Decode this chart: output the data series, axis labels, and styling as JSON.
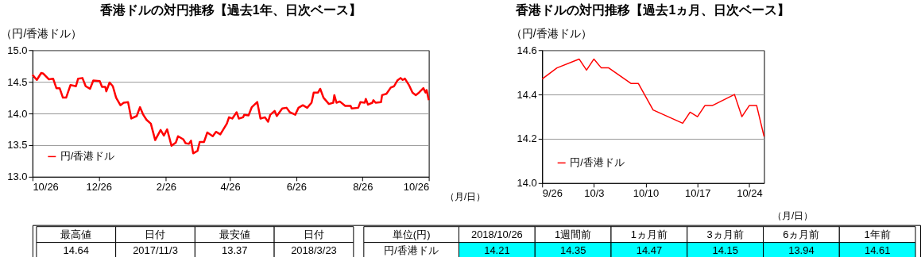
{
  "chart_data": [
    {
      "type": "line",
      "title": "香港ドルの対円推移【過去1年、日次ベース】",
      "ylabel": "（円/香港ドル）",
      "xlabel": "（月/日）",
      "x": [
        "2017-10-26",
        "2017-10-30",
        "2017-11-03",
        "2017-11-05",
        "2017-11-10",
        "2017-11-14",
        "2017-11-17",
        "2017-11-20",
        "2017-11-23",
        "2017-11-26",
        "2017-11-30",
        "2017-12-05",
        "2017-12-07",
        "2017-12-11",
        "2017-12-14",
        "2017-12-18",
        "2017-12-21",
        "2017-12-27",
        "2017-12-29",
        "2018-01-01",
        "2018-01-02",
        "2018-01-05",
        "2018-01-08",
        "2018-01-11",
        "2018-01-15",
        "2018-01-18",
        "2018-01-22",
        "2018-01-25",
        "2018-01-30",
        "2018-02-02",
        "2018-02-05",
        "2018-02-08",
        "2018-02-12",
        "2018-02-16",
        "2018-02-21",
        "2018-02-24",
        "2018-02-27",
        "2018-03-03",
        "2018-03-07",
        "2018-03-09",
        "2018-03-14",
        "2018-03-16",
        "2018-03-19",
        "2018-03-21",
        "2018-03-23",
        "2018-03-27",
        "2018-03-29",
        "2018-04-02",
        "2018-04-05",
        "2018-04-10",
        "2018-04-13",
        "2018-04-17",
        "2018-04-23",
        "2018-04-25",
        "2018-04-28",
        "2018-05-02",
        "2018-05-04",
        "2018-05-08",
        "2018-05-09",
        "2018-05-13",
        "2018-05-16",
        "2018-05-21",
        "2018-05-24",
        "2018-05-28",
        "2018-05-31",
        "2018-06-02",
        "2018-06-06",
        "2018-06-08",
        "2018-06-13",
        "2018-06-17",
        "2018-06-20",
        "2018-06-25",
        "2018-06-28",
        "2018-07-02",
        "2018-07-06",
        "2018-07-10",
        "2018-07-12",
        "2018-07-16",
        "2018-07-18",
        "2018-07-21",
        "2018-07-26",
        "2018-07-30",
        "2018-07-31",
        "2018-08-02",
        "2018-08-05",
        "2018-08-10",
        "2018-08-15",
        "2018-08-16",
        "2018-08-22",
        "2018-08-24",
        "2018-08-28",
        "2018-08-29",
        "2018-08-31",
        "2018-09-04",
        "2018-09-05",
        "2018-09-07",
        "2018-09-12",
        "2018-09-13",
        "2018-09-17",
        "2018-09-21",
        "2018-09-24",
        "2018-09-27",
        "2018-09-30",
        "2018-10-02",
        "2018-10-04",
        "2018-10-08",
        "2018-10-11",
        "2018-10-14",
        "2018-10-17",
        "2018-10-21",
        "2018-10-23",
        "2018-10-24",
        "2018-10-26"
      ],
      "series": [
        {
          "name": "円/香港ドル",
          "color": "#ff0000",
          "values": [
            14.61,
            14.53,
            14.64,
            14.63,
            14.54,
            14.55,
            14.4,
            14.4,
            14.25,
            14.25,
            14.45,
            14.43,
            14.55,
            14.56,
            14.43,
            14.39,
            14.52,
            14.51,
            14.42,
            14.42,
            14.35,
            14.49,
            14.43,
            14.25,
            14.13,
            14.17,
            14.18,
            13.92,
            13.96,
            14.1,
            13.98,
            13.9,
            13.84,
            13.58,
            13.74,
            13.65,
            13.75,
            13.49,
            13.54,
            13.64,
            13.59,
            13.53,
            13.52,
            13.57,
            13.37,
            13.41,
            13.55,
            13.55,
            13.7,
            13.64,
            13.71,
            13.67,
            13.84,
            13.94,
            13.92,
            14.02,
            13.92,
            13.94,
            13.98,
            13.97,
            14.1,
            14.18,
            13.92,
            13.94,
            13.87,
            13.98,
            14.04,
            13.96,
            14.08,
            14.09,
            14.02,
            13.98,
            14.09,
            14.13,
            14.09,
            14.17,
            14.33,
            14.33,
            14.39,
            14.25,
            14.15,
            14.17,
            14.29,
            14.17,
            14.19,
            14.12,
            14.12,
            14.08,
            14.09,
            14.18,
            14.17,
            14.23,
            14.14,
            14.17,
            14.21,
            14.17,
            14.18,
            14.29,
            14.31,
            14.41,
            14.43,
            14.52,
            14.56,
            14.53,
            14.55,
            14.44,
            14.33,
            14.29,
            14.33,
            14.4,
            14.33,
            14.37,
            14.21
          ]
        }
      ],
      "xlim": [
        "2017-10-26",
        "2018-10-26"
      ],
      "xticks": [
        {
          "value": "2017-10-26",
          "label": "10/26"
        },
        {
          "value": "2017-12-26",
          "label": "12/26"
        },
        {
          "value": "2018-02-26",
          "label": "2/26"
        },
        {
          "value": "2018-04-26",
          "label": "4/26"
        },
        {
          "value": "2018-06-26",
          "label": "6/26"
        },
        {
          "value": "2018-08-26",
          "label": "8/26"
        },
        {
          "value": "2018-10-26",
          "label": "10/26"
        }
      ],
      "ylim": [
        13.0,
        15.0
      ],
      "yticks": [
        {
          "value": 13,
          "label": "13.0"
        },
        13.5,
        {
          "value": 14,
          "label": "14.0"
        },
        14.5,
        {
          "value": 15,
          "label": "15.0"
        }
      ],
      "grid": "y",
      "legend": "bottom left",
      "annotations": [
        "最高値",
        "日付",
        "最安値",
        "日付",
        "14.64",
        "2017/11/3",
        "13.37",
        "2018/3/23"
      ]
    },
    {
      "type": "line",
      "title": "香港ドルの対円推移【過去1ヵ月、日次ベース】",
      "ylabel": "（円/香港ドル）",
      "xlabel": "（月/日）",
      "x": [
        "2018-09-26",
        "2018-09-28",
        "2018-10-01",
        "2018-10-02",
        "2018-10-03",
        "2018-10-04",
        "2018-10-05",
        "2018-10-08",
        "2018-10-09",
        "2018-10-11",
        "2018-10-15",
        "2018-10-16",
        "2018-10-17",
        "2018-10-18",
        "2018-10-19",
        "2018-10-22",
        "2018-10-23",
        "2018-10-24",
        "2018-10-25",
        "2018-10-26"
      ],
      "series": [
        {
          "name": "円/香港ドル",
          "color": "#ff0000",
          "values": [
            14.47,
            14.52,
            14.56,
            14.51,
            14.56,
            14.52,
            14.52,
            14.45,
            14.45,
            14.33,
            14.27,
            14.32,
            14.3,
            14.35,
            14.35,
            14.4,
            14.3,
            14.35,
            14.35,
            14.21
          ]
        }
      ],
      "xlim": [
        "2018-09-26",
        "2018-10-26"
      ],
      "xticks": [
        {
          "value": "2018-09-26",
          "label": "9/26"
        },
        {
          "value": "2018-10-03",
          "label": "10/3"
        },
        {
          "value": "2018-10-10",
          "label": "10/10"
        },
        {
          "value": "2018-10-17",
          "label": "10/17"
        },
        {
          "value": "2018-10-24",
          "label": "10/24"
        }
      ],
      "ylim": [
        14.0,
        14.6
      ],
      "yticks": [
        {
          "value": 14,
          "label": "14.0"
        },
        14.2,
        14.4,
        14.6
      ],
      "grid": "y",
      "legend": "bottom left",
      "annotations": [
        "単位(円)",
        "2018/10/26",
        "1週間前",
        "1ヵ月前",
        "3ヵ月前",
        "6ヵ月前",
        "1年前",
        "円/香港ドル",
        "14.21",
        "14.35",
        "14.47",
        "14.15",
        "13.94",
        "14.61"
      ]
    }
  ]
}
